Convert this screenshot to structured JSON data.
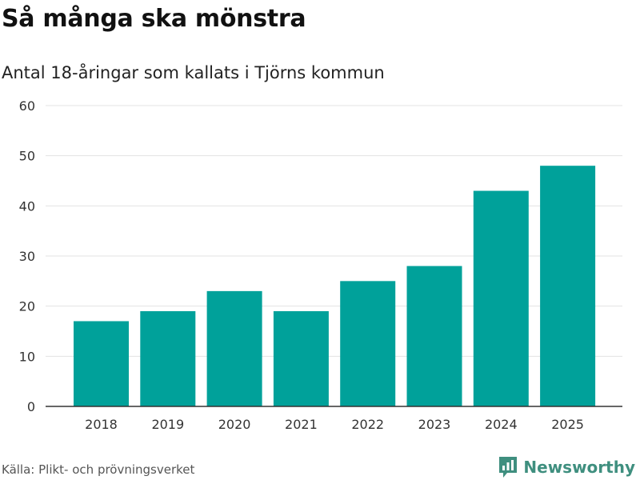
{
  "header": {
    "title": "Så många ska mönstra",
    "subtitle": "Antal 18-åringar som kallats i Tjörns kommun"
  },
  "footer": {
    "source": "Källa: Plikt- och prövningsverket",
    "brand": "Newsworthy",
    "brand_icon": "bar-chart-speech-bubble-icon"
  },
  "colors": {
    "bar": "#00a19a",
    "grid": "#e3e3e3",
    "axis": "#333333",
    "brand": "#3f8f7f"
  },
  "chart_data": {
    "type": "bar",
    "title": "Så många ska mönstra",
    "subtitle": "Antal 18-åringar som kallats i Tjörns kommun",
    "categories": [
      "2018",
      "2019",
      "2020",
      "2021",
      "2022",
      "2023",
      "2024",
      "2025"
    ],
    "values": [
      17,
      19,
      23,
      19,
      25,
      28,
      43,
      48
    ],
    "xlabel": "",
    "ylabel": "",
    "ylim": [
      0,
      60
    ],
    "yticks": [
      0,
      10,
      20,
      30,
      40,
      50,
      60
    ],
    "grid": true,
    "legend": "none"
  }
}
